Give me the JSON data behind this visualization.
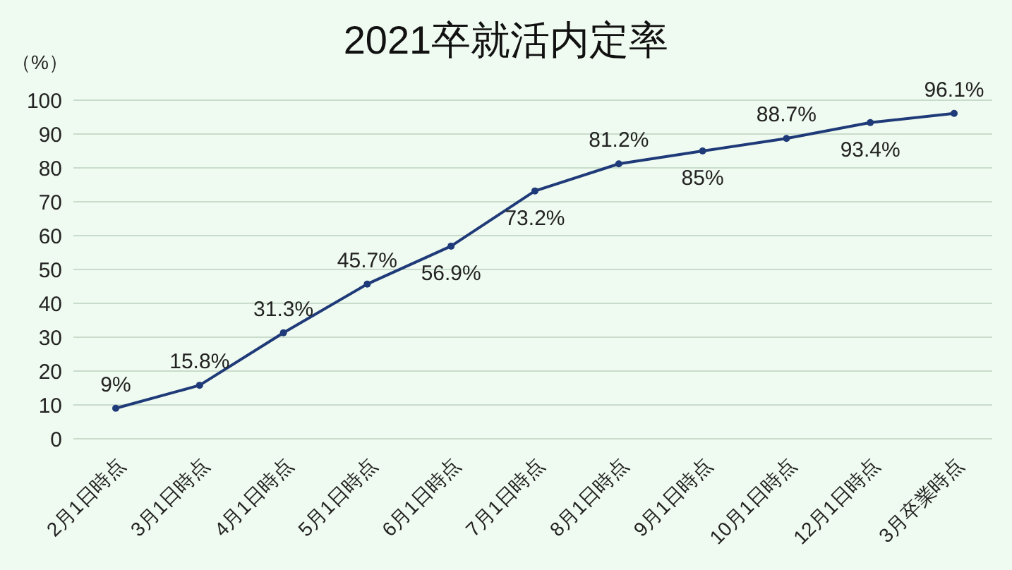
{
  "chart_data": {
    "type": "line",
    "title": "2021卒就活内定率",
    "ylabel": "（%）",
    "categories": [
      "2月1日時点",
      "3月1日時点",
      "4月1日時点",
      "5月1日時点",
      "6月1日時点",
      "7月1日時点",
      "8月1日時点",
      "9月1日時点",
      "10月1日時点",
      "12月1日時点",
      "3月卒業時点"
    ],
    "series": [
      {
        "color": "#1f3a78",
        "values": [
          9,
          15.8,
          31.3,
          45.7,
          56.9,
          73.2,
          81.2,
          85,
          88.7,
          93.4,
          96.1
        ],
        "value_labels": [
          "9%",
          "15.8%",
          "31.3%",
          "45.7%",
          "56.9%",
          "73.2%",
          "81.2%",
          "85%",
          "88.7%",
          "93.4%",
          "96.1%"
        ]
      }
    ],
    "ylim": [
      0,
      100
    ],
    "yticks": [
      0,
      10,
      20,
      30,
      40,
      50,
      60,
      70,
      80,
      90,
      100
    ],
    "grid": "y",
    "legend": false,
    "marker": "circle",
    "line_style": "solid"
  }
}
